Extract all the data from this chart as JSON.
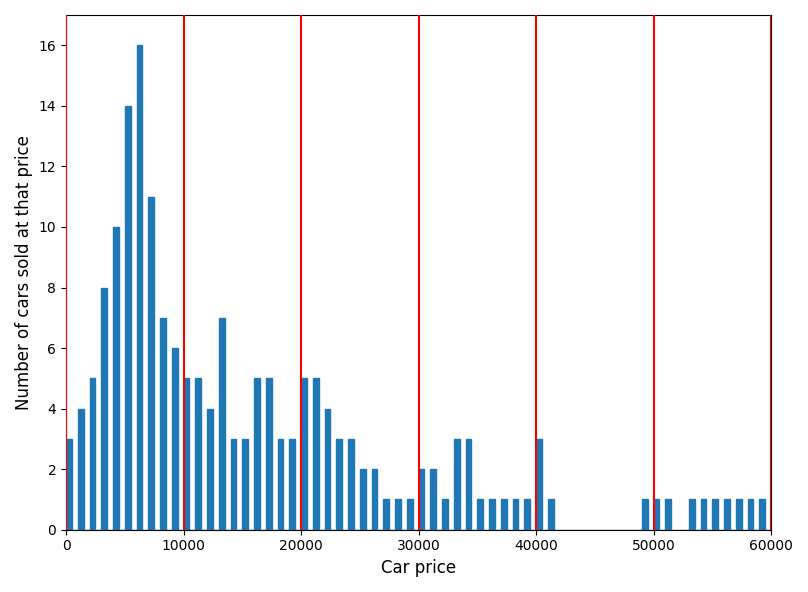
{
  "title": "",
  "xlabel": "Car price",
  "ylabel": "Number of cars sold at that price",
  "bar_color": "#1f77b4",
  "red_lines": [
    0,
    10000,
    20000,
    30000,
    40000,
    50000,
    60000
  ],
  "xlim": [
    0,
    60000
  ],
  "ylim": [
    0,
    17
  ],
  "yticks": [
    0,
    2,
    4,
    6,
    8,
    10,
    12,
    14,
    16
  ],
  "xticks": [
    0,
    10000,
    20000,
    30000,
    40000,
    50000,
    60000
  ],
  "bin_width": 500,
  "car_data": [
    3,
    0,
    4,
    0,
    5,
    0,
    8,
    0,
    10,
    0,
    14,
    0,
    16,
    0,
    11,
    0,
    7,
    0,
    6,
    0,
    5,
    0,
    5,
    0,
    4,
    0,
    7,
    0,
    3,
    0,
    3,
    0,
    5,
    0,
    5,
    0,
    3,
    0,
    3,
    0,
    5,
    0,
    5,
    0,
    4,
    0,
    3,
    0,
    3,
    0,
    2,
    0,
    2,
    0,
    1,
    0,
    1,
    0,
    1,
    0,
    2,
    0,
    2,
    0,
    1,
    0,
    3,
    0,
    3,
    0,
    1,
    0,
    1,
    0,
    1,
    0,
    1,
    0,
    1,
    0,
    3,
    0,
    1,
    0,
    0,
    0,
    0,
    0,
    0,
    0,
    0,
    0,
    0,
    0,
    0,
    0,
    0,
    0,
    1,
    0,
    1,
    0,
    1,
    0,
    0,
    0,
    1,
    0,
    1,
    0,
    1,
    0,
    1,
    0,
    1,
    0,
    1,
    0,
    1,
    0
  ],
  "figsize": [
    8.08,
    5.92
  ],
  "dpi": 100
}
